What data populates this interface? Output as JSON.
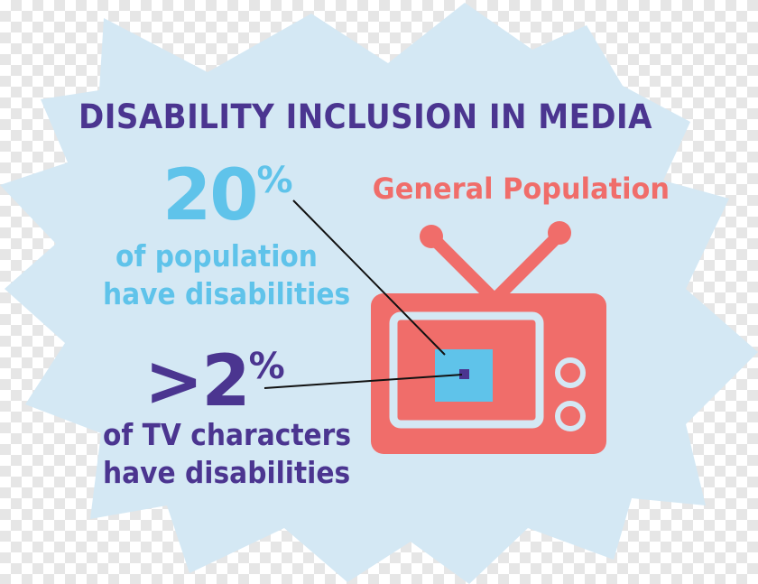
{
  "title": "DISABILITY INCLUSION IN MEDIA",
  "general_population_label": "General Population",
  "population_stat": {
    "value": "20",
    "unit": "%",
    "line1": "of population",
    "line2": "have disabilities"
  },
  "tv_stat": {
    "value": ">2",
    "unit": "%",
    "line1": "of TV characters",
    "line2": "have disabilities"
  },
  "colors": {
    "burst": "#d4e8f4",
    "title": "#4b3590",
    "population": "#5fc3ea",
    "tv_stat": "#4b3590",
    "tv": "#f06d6a",
    "tv_screen_square": "#5fc3ea",
    "tv_small_square": "#4b3590"
  },
  "icons": [
    "starburst-background",
    "television-icon"
  ]
}
